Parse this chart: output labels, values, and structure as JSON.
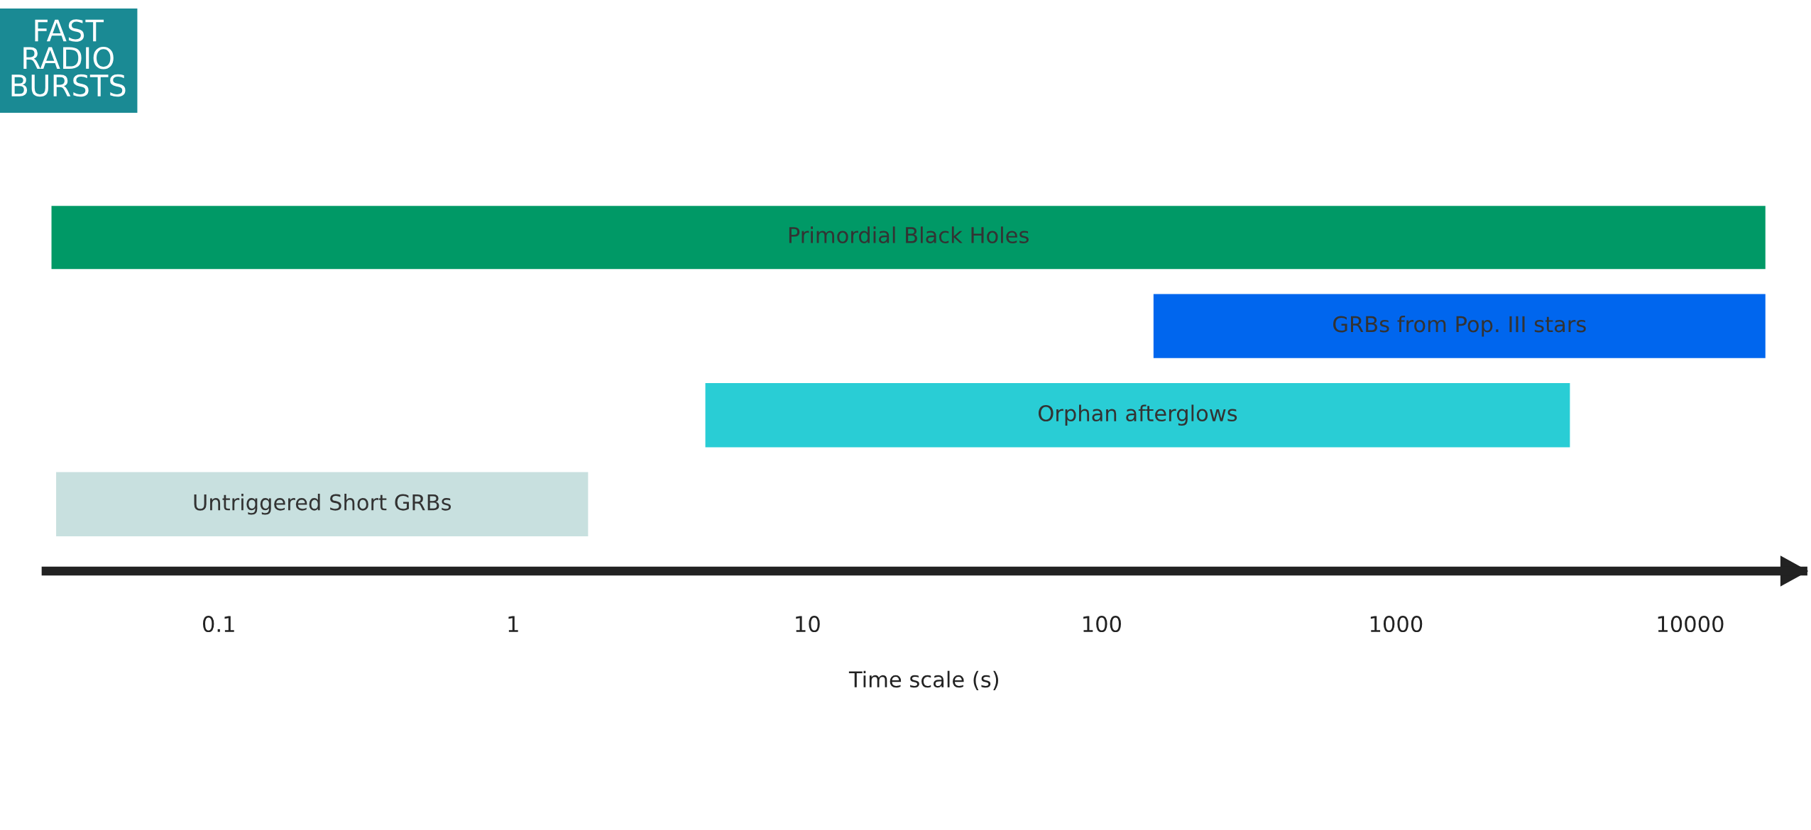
{
  "chart_data": {
    "type": "bar",
    "orientation": "horizontal",
    "title": "FAST\nRADIO\nBURSTS",
    "xlabel": "Time scale (s)",
    "categories": [
      "Primordial Black Holes",
      "GRBs from Pop. III stars",
      "Orphan afterglows",
      "Untriggered Short GRBs"
    ],
    "base": [
      0.027,
      150,
      4.5,
      0.028
    ],
    "values": [
      18000,
      17850,
      3895,
      1.77
    ],
    "colors": [
      "#009966",
      "#0066ee",
      "#29cdd5",
      "#c8e0df"
    ],
    "log": "x",
    "xlim": [
      0.025,
      25000
    ],
    "xticks": [
      0.1,
      1,
      10,
      100,
      1000,
      10000
    ],
    "grid": false,
    "legend": false
  }
}
